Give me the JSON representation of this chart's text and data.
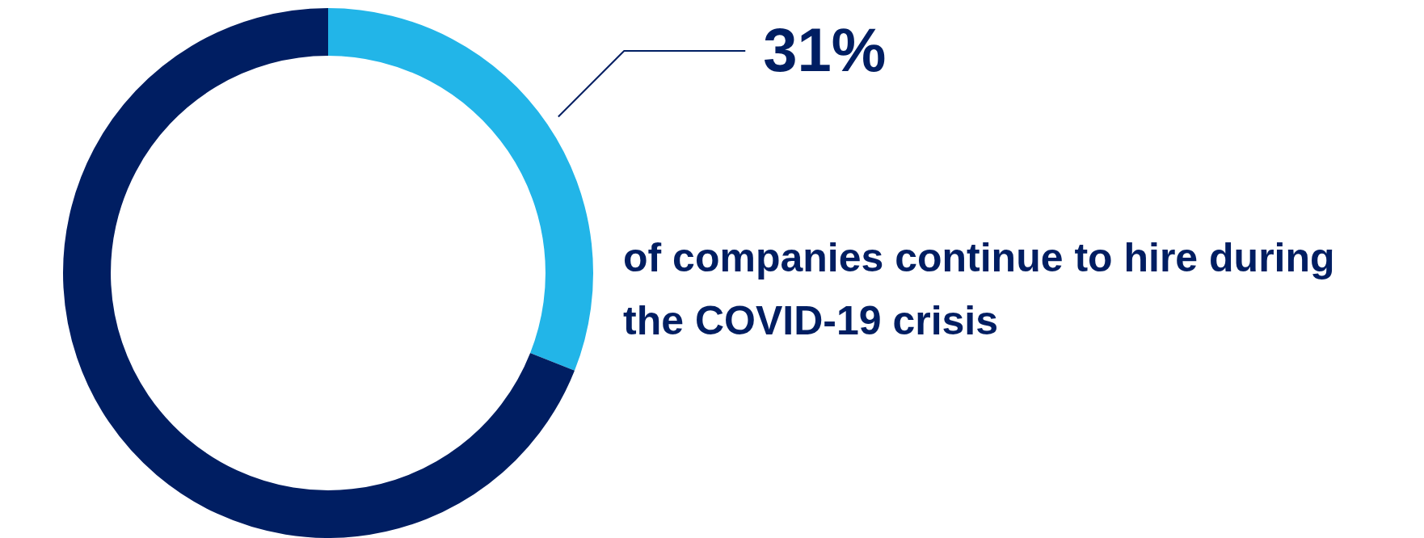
{
  "chart_data": {
    "type": "donut",
    "categories": [
      "of companies continue to hire during the COVID-19 crisis",
      null
    ],
    "values": [
      31,
      69
    ],
    "colors": [
      "#22b5e8",
      "#001e62"
    ],
    "value_labels": [
      "31%",
      null
    ],
    "legend": false
  }
}
